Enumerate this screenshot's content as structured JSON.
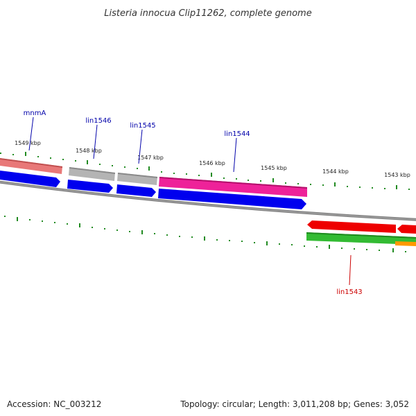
{
  "title": "Listeria innocua Clip11262, complete genome",
  "footer": {
    "accession": "Accession: NC_003212",
    "summary": "Topology: circular; Length: 3,011,208 bp; Genes: 3,052"
  },
  "ruler": {
    "labels": [
      "1549 kbp",
      "1548 kbp",
      "1547 kbp",
      "1546 kbp",
      "1545 kbp",
      "1544 kbp",
      "1543 kbp"
    ]
  },
  "genes": [
    {
      "name": "mnmA",
      "color": "#0000aa"
    },
    {
      "name": "lin1546",
      "color": "#0000aa"
    },
    {
      "name": "lin1545",
      "color": "#0000aa"
    },
    {
      "name": "lin1544",
      "color": "#0000aa"
    },
    {
      "name": "lin1543",
      "color": "#cc0000"
    }
  ],
  "colors": {
    "backbone": "#808080",
    "tick": "#228b22",
    "blue_track": "#0000ee",
    "pink": "#ee2299",
    "salmon": "#e87878",
    "gray_feature": "#b4b4b4",
    "red": "#ee0000",
    "green": "#33bb33",
    "orange": "#ff9900"
  }
}
